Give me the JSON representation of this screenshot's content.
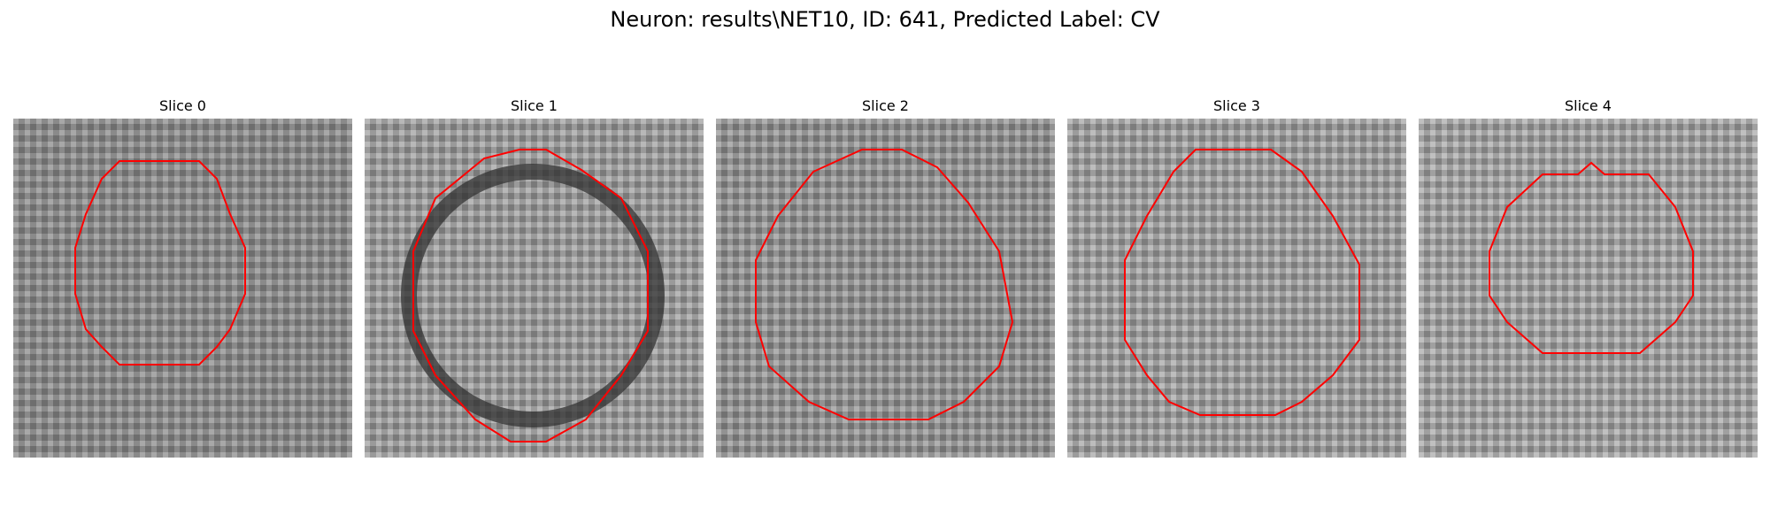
{
  "figure": {
    "title": "Neuron: results\\NET10, ID: 641, Predicted Label: CV"
  },
  "panels": [
    {
      "title": "Slice 0"
    },
    {
      "title": "Slice 1"
    },
    {
      "title": "Slice 2"
    },
    {
      "title": "Slice 3"
    },
    {
      "title": "Slice 4"
    }
  ],
  "colors": {
    "contour": "#ff0000",
    "colormap": "grayscale"
  }
}
